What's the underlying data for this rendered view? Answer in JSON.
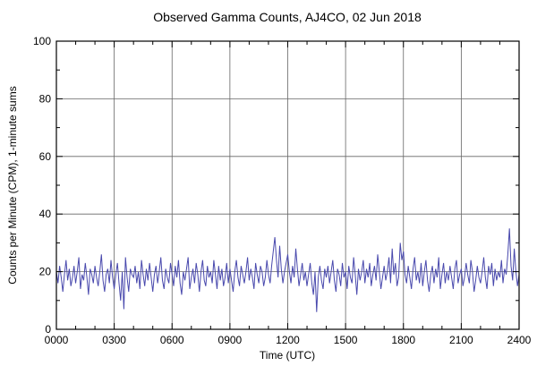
{
  "chart_data": {
    "type": "line",
    "title": "Observed Gamma Counts, AJ4CO, 02 Jun 2018",
    "xlabel": "Time (UTC)",
    "ylabel": "Counts per Minute (CPM), 1-minute sums",
    "xlim": [
      0,
      1440
    ],
    "ylim": [
      0,
      100
    ],
    "x_tick_interval_minutes": 180,
    "x_minor_tick_interval_minutes": 60,
    "x_tick_labels": [
      "0000",
      "0300",
      "0600",
      "0900",
      "1200",
      "1500",
      "1800",
      "2100",
      "2400"
    ],
    "y_ticks": [
      0,
      20,
      40,
      60,
      80,
      100
    ],
    "y_minor_tick_interval": 10,
    "grid": true,
    "legend": "none",
    "sample_interval_minutes": 5,
    "line_color": "#4949ad",
    "grid_color": "#666666",
    "frame_color": "#000000",
    "values": [
      20,
      16,
      22,
      18,
      13,
      19,
      24,
      17,
      21,
      15,
      18,
      22,
      16,
      20,
      25,
      14,
      19,
      17,
      23,
      18,
      12,
      21,
      19,
      16,
      22,
      18,
      15,
      20,
      26,
      17,
      13,
      19,
      21,
      16,
      24,
      18,
      14,
      19,
      23,
      16,
      10,
      20,
      7,
      25,
      18,
      13,
      21,
      19,
      18,
      22,
      16,
      20,
      14,
      24,
      19,
      15,
      21,
      17,
      23,
      18,
      13,
      19,
      22,
      16,
      20,
      25,
      17,
      14,
      21,
      18,
      16,
      23,
      19,
      15,
      22,
      18,
      24,
      16,
      12,
      20,
      17,
      21,
      25,
      14,
      18,
      21,
      16,
      23,
      19,
      13,
      20,
      24,
      17,
      15,
      22,
      18,
      20,
      16,
      24,
      19,
      14,
      22,
      17,
      21,
      15,
      18,
      23,
      16,
      21,
      17,
      13,
      20,
      24,
      18,
      15,
      22,
      19,
      16,
      20,
      25,
      17,
      21,
      18,
      14,
      23,
      19,
      16,
      22,
      20,
      15,
      18,
      24,
      19,
      16,
      22,
      27,
      32,
      24,
      18,
      29,
      21,
      16,
      20,
      23,
      26,
      20,
      16,
      22,
      18,
      28,
      21,
      15,
      19,
      23,
      17,
      20,
      15,
      19,
      23,
      16,
      12,
      20,
      6,
      18,
      22,
      17,
      14,
      21,
      18,
      22,
      16,
      20,
      24,
      17,
      13,
      21,
      19,
      15,
      23,
      18,
      20,
      14,
      22,
      18,
      16,
      25,
      19,
      12,
      21,
      17,
      20,
      24,
      16,
      21,
      18,
      23,
      15,
      19,
      22,
      17,
      26,
      20,
      14,
      18,
      22,
      17,
      20,
      25,
      16,
      28,
      19,
      23,
      15,
      18,
      30,
      24,
      27,
      19,
      16,
      22,
      18,
      14,
      21,
      25,
      17,
      20,
      16,
      23,
      15,
      20,
      24,
      17,
      13,
      19,
      22,
      16,
      21,
      18,
      25,
      14,
      19,
      23,
      16,
      20,
      17,
      22,
      18,
      14,
      21,
      24,
      16,
      19,
      21,
      15,
      18,
      23,
      19,
      16,
      24,
      20,
      13,
      17,
      22,
      18,
      16,
      20,
      25,
      18,
      14,
      22,
      19,
      23,
      15,
      21,
      17,
      20,
      18,
      24,
      16,
      21,
      19,
      26,
      35,
      22,
      17,
      28,
      20,
      15,
      19
    ]
  }
}
